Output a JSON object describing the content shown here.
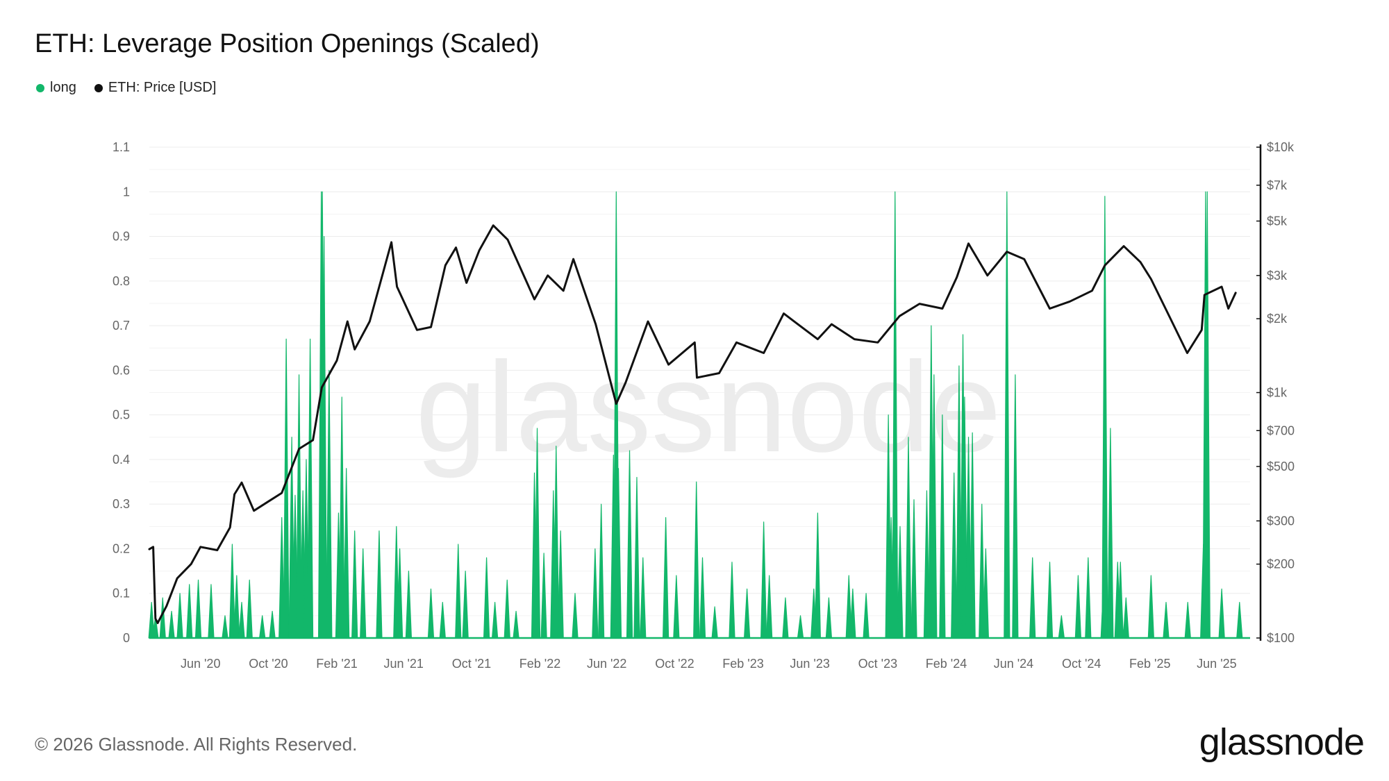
{
  "title": "ETH: Leverage Position Openings (Scaled)",
  "legend": [
    {
      "name": "long",
      "color": "#12b76a"
    },
    {
      "name": "ETH: Price [USD]",
      "color": "#111111"
    }
  ],
  "watermark": "glassnode",
  "footer": {
    "copyright": "© 2026 Glassnode. All Rights Reserved.",
    "logo": "glassnode"
  },
  "chart_data": {
    "type": "line",
    "title": "ETH: Leverage Position Openings (Scaled)",
    "x_range": [
      "2020-03-01",
      "2025-07-31"
    ],
    "x_ticks": [
      {
        "label": "Jun '20",
        "date": "2020-06-01"
      },
      {
        "label": "Oct '20",
        "date": "2020-10-01"
      },
      {
        "label": "Feb '21",
        "date": "2021-02-01"
      },
      {
        "label": "Jun '21",
        "date": "2021-06-01"
      },
      {
        "label": "Oct '21",
        "date": "2021-10-01"
      },
      {
        "label": "Feb '22",
        "date": "2022-02-01"
      },
      {
        "label": "Jun '22",
        "date": "2022-06-01"
      },
      {
        "label": "Oct '22",
        "date": "2022-10-01"
      },
      {
        "label": "Feb '23",
        "date": "2023-02-01"
      },
      {
        "label": "Jun '23",
        "date": "2023-06-01"
      },
      {
        "label": "Oct '23",
        "date": "2023-10-01"
      },
      {
        "label": "Feb '24",
        "date": "2024-02-01"
      },
      {
        "label": "Jun '24",
        "date": "2024-06-01"
      },
      {
        "label": "Oct '24",
        "date": "2024-10-01"
      },
      {
        "label": "Feb '25",
        "date": "2025-02-01"
      },
      {
        "label": "Jun '25",
        "date": "2025-06-01"
      }
    ],
    "y_left": {
      "ticks": [
        "0",
        "0.1",
        "0.2",
        "0.3",
        "0.4",
        "0.5",
        "0.6",
        "0.7",
        "0.8",
        "0.9",
        "1",
        "1.1"
      ],
      "range": [
        0,
        1.1
      ]
    },
    "y_right": {
      "scale": "log",
      "range": [
        100,
        10000
      ],
      "ticks": [
        {
          "label": "$100",
          "value": 100
        },
        {
          "label": "$200",
          "value": 200
        },
        {
          "label": "$300",
          "value": 300
        },
        {
          "label": "$500",
          "value": 500
        },
        {
          "label": "$700",
          "value": 700
        },
        {
          "label": "$1k",
          "value": 1000
        },
        {
          "label": "$2k",
          "value": 2000
        },
        {
          "label": "$3k",
          "value": 3000
        },
        {
          "label": "$5k",
          "value": 5000
        },
        {
          "label": "$7k",
          "value": 7000
        },
        {
          "label": "$10k",
          "value": 10000
        }
      ]
    },
    "grid": true,
    "legend_position": "top-left",
    "series": [
      {
        "name": "long",
        "axis": "left",
        "color": "#12b76a",
        "style": "spikes",
        "points": [
          [
            "2020-03-05",
            0.08
          ],
          [
            "2020-03-12",
            0.05
          ],
          [
            "2020-03-25",
            0.09
          ],
          [
            "2020-04-10",
            0.06
          ],
          [
            "2020-04-25",
            0.1
          ],
          [
            "2020-05-12",
            0.12
          ],
          [
            "2020-05-28",
            0.13
          ],
          [
            "2020-06-20",
            0.12
          ],
          [
            "2020-07-15",
            0.05
          ],
          [
            "2020-07-28",
            0.21
          ],
          [
            "2020-08-05",
            0.14
          ],
          [
            "2020-08-14",
            0.08
          ],
          [
            "2020-08-28",
            0.13
          ],
          [
            "2020-09-20",
            0.05
          ],
          [
            "2020-10-08",
            0.06
          ],
          [
            "2020-10-25",
            0.27
          ],
          [
            "2020-11-02",
            0.67
          ],
          [
            "2020-11-12",
            0.45
          ],
          [
            "2020-11-18",
            0.32
          ],
          [
            "2020-11-25",
            0.59
          ],
          [
            "2020-12-02",
            0.33
          ],
          [
            "2020-12-08",
            0.4
          ],
          [
            "2020-12-15",
            0.67
          ],
          [
            "2021-01-04",
            1.0
          ],
          [
            "2021-01-06",
            1.0
          ],
          [
            "2021-01-09",
            0.9
          ],
          [
            "2021-01-18",
            0.6
          ],
          [
            "2021-02-04",
            0.28
          ],
          [
            "2021-02-10",
            0.54
          ],
          [
            "2021-02-18",
            0.38
          ],
          [
            "2021-03-05",
            0.24
          ],
          [
            "2021-03-20",
            0.2
          ],
          [
            "2021-04-18",
            0.24
          ],
          [
            "2021-05-19",
            0.25
          ],
          [
            "2021-05-25",
            0.2
          ],
          [
            "2021-06-10",
            0.15
          ],
          [
            "2021-07-20",
            0.11
          ],
          [
            "2021-08-10",
            0.08
          ],
          [
            "2021-09-07",
            0.21
          ],
          [
            "2021-09-20",
            0.15
          ],
          [
            "2021-10-28",
            0.18
          ],
          [
            "2021-11-12",
            0.08
          ],
          [
            "2021-12-04",
            0.13
          ],
          [
            "2021-12-20",
            0.06
          ],
          [
            "2022-01-22",
            0.37
          ],
          [
            "2022-01-27",
            0.47
          ],
          [
            "2022-02-08",
            0.19
          ],
          [
            "2022-02-25",
            0.33
          ],
          [
            "2022-03-02",
            0.43
          ],
          [
            "2022-03-10",
            0.24
          ],
          [
            "2022-04-05",
            0.1
          ],
          [
            "2022-05-11",
            0.2
          ],
          [
            "2022-05-22",
            0.3
          ],
          [
            "2022-06-13",
            0.41
          ],
          [
            "2022-06-18",
            1.0
          ],
          [
            "2022-06-22",
            0.38
          ],
          [
            "2022-07-12",
            0.42
          ],
          [
            "2022-07-25",
            0.36
          ],
          [
            "2022-08-05",
            0.18
          ],
          [
            "2022-09-15",
            0.27
          ],
          [
            "2022-10-04",
            0.14
          ],
          [
            "2022-11-09",
            0.35
          ],
          [
            "2022-11-20",
            0.18
          ],
          [
            "2022-12-12",
            0.07
          ],
          [
            "2023-01-12",
            0.17
          ],
          [
            "2023-02-08",
            0.11
          ],
          [
            "2023-03-10",
            0.26
          ],
          [
            "2023-03-20",
            0.14
          ],
          [
            "2023-04-18",
            0.09
          ],
          [
            "2023-05-15",
            0.05
          ],
          [
            "2023-06-08",
            0.11
          ],
          [
            "2023-06-15",
            0.28
          ],
          [
            "2023-07-05",
            0.09
          ],
          [
            "2023-08-10",
            0.14
          ],
          [
            "2023-08-17",
            0.11
          ],
          [
            "2023-09-10",
            0.1
          ],
          [
            "2023-10-20",
            0.5
          ],
          [
            "2023-10-25",
            0.27
          ],
          [
            "2023-11-01",
            1.0
          ],
          [
            "2023-11-10",
            0.25
          ],
          [
            "2023-11-25",
            0.45
          ],
          [
            "2023-12-05",
            0.31
          ],
          [
            "2023-12-28",
            0.33
          ],
          [
            "2024-01-05",
            0.7
          ],
          [
            "2024-01-10",
            0.59
          ],
          [
            "2024-01-25",
            0.5
          ],
          [
            "2024-02-15",
            0.37
          ],
          [
            "2024-02-24",
            0.61
          ],
          [
            "2024-03-02",
            0.68
          ],
          [
            "2024-03-05",
            0.54
          ],
          [
            "2024-03-12",
            0.45
          ],
          [
            "2024-03-19",
            0.46
          ],
          [
            "2024-04-05",
            0.3
          ],
          [
            "2024-04-12",
            0.2
          ],
          [
            "2024-05-20",
            1.0
          ],
          [
            "2024-06-04",
            0.59
          ],
          [
            "2024-07-05",
            0.18
          ],
          [
            "2024-08-05",
            0.17
          ],
          [
            "2024-08-26",
            0.05
          ],
          [
            "2024-09-25",
            0.14
          ],
          [
            "2024-10-13",
            0.18
          ],
          [
            "2024-11-10",
            0.13
          ],
          [
            "2024-11-12",
            0.99
          ],
          [
            "2024-11-22",
            0.47
          ],
          [
            "2024-12-05",
            0.17
          ],
          [
            "2024-12-10",
            0.17
          ],
          [
            "2024-12-20",
            0.09
          ],
          [
            "2025-02-03",
            0.14
          ],
          [
            "2025-03-02",
            0.08
          ],
          [
            "2025-04-10",
            0.08
          ],
          [
            "2025-05-08",
            0.21
          ],
          [
            "2025-05-12",
            1.0
          ],
          [
            "2025-05-15",
            1.0
          ],
          [
            "2025-06-10",
            0.11
          ],
          [
            "2025-07-12",
            0.08
          ]
        ]
      },
      {
        "name": "ETH: Price [USD]",
        "axis": "right",
        "color": "#111111",
        "style": "line",
        "points": [
          [
            "2020-03-01",
            230
          ],
          [
            "2020-03-08",
            235
          ],
          [
            "2020-03-12",
            120
          ],
          [
            "2020-03-16",
            115
          ],
          [
            "2020-04-01",
            135
          ],
          [
            "2020-04-20",
            175
          ],
          [
            "2020-05-15",
            200
          ],
          [
            "2020-06-01",
            235
          ],
          [
            "2020-07-01",
            228
          ],
          [
            "2020-07-24",
            282
          ],
          [
            "2020-08-01",
            385
          ],
          [
            "2020-08-14",
            430
          ],
          [
            "2020-09-05",
            330
          ],
          [
            "2020-10-01",
            360
          ],
          [
            "2020-10-25",
            390
          ],
          [
            "2020-11-25",
            590
          ],
          [
            "2020-12-20",
            640
          ],
          [
            "2021-01-05",
            1050
          ],
          [
            "2021-02-01",
            1350
          ],
          [
            "2021-02-20",
            1950
          ],
          [
            "2021-03-05",
            1500
          ],
          [
            "2021-04-01",
            1950
          ],
          [
            "2021-05-10",
            4100
          ],
          [
            "2021-05-20",
            2700
          ],
          [
            "2021-06-25",
            1800
          ],
          [
            "2021-07-20",
            1850
          ],
          [
            "2021-08-15",
            3300
          ],
          [
            "2021-09-03",
            3900
          ],
          [
            "2021-09-22",
            2800
          ],
          [
            "2021-10-15",
            3800
          ],
          [
            "2021-11-09",
            4800
          ],
          [
            "2021-12-05",
            4200
          ],
          [
            "2022-01-22",
            2400
          ],
          [
            "2022-02-15",
            3000
          ],
          [
            "2022-03-15",
            2600
          ],
          [
            "2022-04-02",
            3500
          ],
          [
            "2022-05-12",
            1900
          ],
          [
            "2022-06-18",
            900
          ],
          [
            "2022-07-05",
            1100
          ],
          [
            "2022-08-14",
            1950
          ],
          [
            "2022-09-20",
            1300
          ],
          [
            "2022-11-06",
            1600
          ],
          [
            "2022-11-10",
            1150
          ],
          [
            "2022-12-20",
            1200
          ],
          [
            "2023-01-20",
            1600
          ],
          [
            "2023-03-10",
            1450
          ],
          [
            "2023-04-15",
            2100
          ],
          [
            "2023-06-15",
            1650
          ],
          [
            "2023-07-10",
            1900
          ],
          [
            "2023-08-20",
            1650
          ],
          [
            "2023-10-01",
            1600
          ],
          [
            "2023-11-09",
            2050
          ],
          [
            "2023-12-15",
            2300
          ],
          [
            "2024-01-25",
            2200
          ],
          [
            "2024-02-20",
            2950
          ],
          [
            "2024-03-12",
            4050
          ],
          [
            "2024-04-15",
            3000
          ],
          [
            "2024-05-20",
            3750
          ],
          [
            "2024-06-20",
            3500
          ],
          [
            "2024-08-05",
            2200
          ],
          [
            "2024-09-10",
            2350
          ],
          [
            "2024-10-20",
            2600
          ],
          [
            "2024-11-12",
            3300
          ],
          [
            "2024-12-16",
            3950
          ],
          [
            "2025-01-15",
            3400
          ],
          [
            "2025-02-03",
            2900
          ],
          [
            "2025-03-10",
            2000
          ],
          [
            "2025-04-09",
            1450
          ],
          [
            "2025-05-05",
            1800
          ],
          [
            "2025-05-10",
            2500
          ],
          [
            "2025-06-10",
            2700
          ],
          [
            "2025-06-22",
            2200
          ],
          [
            "2025-07-05",
            2550
          ]
        ]
      }
    ]
  }
}
